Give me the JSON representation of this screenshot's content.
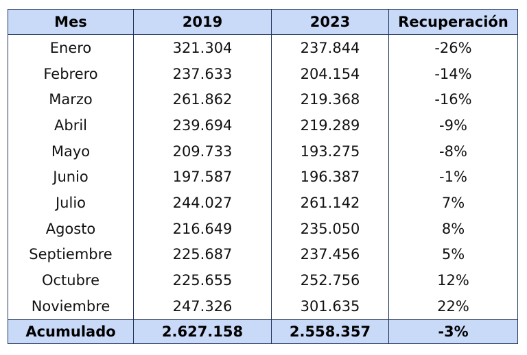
{
  "table": {
    "headers": [
      "Mes",
      "2019",
      "2023",
      "Recuperación"
    ],
    "rows": [
      [
        "Enero",
        "321.304",
        "237.844",
        "-26%"
      ],
      [
        "Febrero",
        "237.633",
        "204.154",
        "-14%"
      ],
      [
        "Marzo",
        "261.862",
        "219.368",
        "-16%"
      ],
      [
        "Abril",
        "239.694",
        "219.289",
        "-9%"
      ],
      [
        "Mayo",
        "209.733",
        "193.275",
        "-8%"
      ],
      [
        "Junio",
        "197.587",
        "196.387",
        "-1%"
      ],
      [
        "Julio",
        "244.027",
        "261.142",
        "7%"
      ],
      [
        "Agosto",
        "216.649",
        "235.050",
        "8%"
      ],
      [
        "Septiembre",
        "225.687",
        "237.456",
        "5%"
      ],
      [
        "Octubre",
        "225.655",
        "252.756",
        "12%"
      ],
      [
        "Noviembre",
        "247.326",
        "301.635",
        "22%"
      ]
    ],
    "total": [
      "Acumulado",
      "2.627.158",
      "2.558.357",
      "-3%"
    ]
  },
  "colors": {
    "header_bg": "#c9daf8",
    "border": "#1c2f55"
  }
}
